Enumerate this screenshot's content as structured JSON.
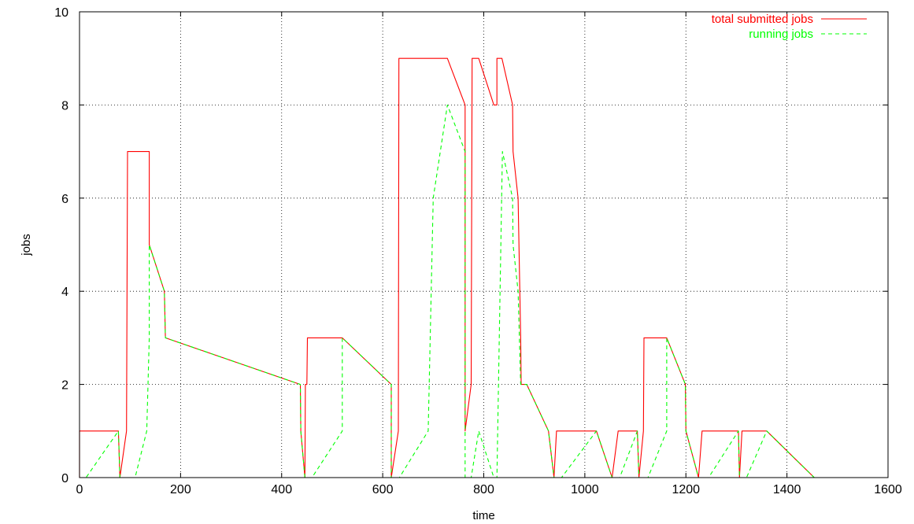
{
  "chart_data": {
    "type": "line",
    "title": "",
    "xlabel": "time",
    "ylabel": "jobs",
    "xlim": [
      0,
      1600
    ],
    "ylim": [
      0,
      10
    ],
    "xticks": [
      0,
      200,
      400,
      600,
      800,
      1000,
      1200,
      1400,
      1600
    ],
    "yticks": [
      0,
      2,
      4,
      6,
      8,
      10
    ],
    "grid": true,
    "legend_position": "top-right",
    "series": [
      {
        "name": "total submitted jobs",
        "color": "#ff0000",
        "dash": "solid",
        "points": [
          [
            0,
            0
          ],
          [
            0,
            1
          ],
          [
            77,
            1
          ],
          [
            80,
            0
          ],
          [
            93,
            1
          ],
          [
            95,
            7
          ],
          [
            138,
            7
          ],
          [
            138,
            5
          ],
          [
            168,
            4
          ],
          [
            170,
            3
          ],
          [
            437,
            2
          ],
          [
            438,
            1
          ],
          [
            446,
            0
          ],
          [
            447,
            2
          ],
          [
            450,
            2
          ],
          [
            451,
            3
          ],
          [
            520,
            3
          ],
          [
            617,
            2
          ],
          [
            617,
            0
          ],
          [
            631,
            1
          ],
          [
            632,
            9
          ],
          [
            728,
            9
          ],
          [
            763,
            8
          ],
          [
            763,
            1
          ],
          [
            775,
            2
          ],
          [
            777,
            9
          ],
          [
            790,
            9
          ],
          [
            820,
            8
          ],
          [
            826,
            8
          ],
          [
            826,
            9
          ],
          [
            836,
            9
          ],
          [
            857,
            8
          ],
          [
            858,
            7
          ],
          [
            868,
            6
          ],
          [
            873,
            3
          ],
          [
            874,
            2
          ],
          [
            885,
            2
          ],
          [
            928,
            1
          ],
          [
            939,
            0
          ],
          [
            944,
            1
          ],
          [
            1023,
            1
          ],
          [
            1054,
            0
          ],
          [
            1066,
            1
          ],
          [
            1104,
            1
          ],
          [
            1107,
            0
          ],
          [
            1116,
            1
          ],
          [
            1117,
            3
          ],
          [
            1162,
            3
          ],
          [
            1199,
            2
          ],
          [
            1200,
            1
          ],
          [
            1225,
            0
          ],
          [
            1232,
            1
          ],
          [
            1304,
            1
          ],
          [
            1306,
            0
          ],
          [
            1311,
            1
          ],
          [
            1360,
            1
          ],
          [
            1454,
            0
          ]
        ]
      },
      {
        "name": "running jobs",
        "color": "#00ff00",
        "dash": "dashed",
        "points": [
          [
            0,
            0
          ],
          [
            13,
            0
          ],
          [
            77,
            1
          ],
          [
            80,
            0
          ],
          [
            110,
            0
          ],
          [
            133,
            1
          ],
          [
            138,
            3
          ],
          [
            138,
            5
          ],
          [
            168,
            4
          ],
          [
            170,
            3
          ],
          [
            437,
            2
          ],
          [
            438,
            1
          ],
          [
            446,
            0
          ],
          [
            460,
            0
          ],
          [
            520,
            1
          ],
          [
            520,
            3
          ],
          [
            617,
            2
          ],
          [
            617,
            0
          ],
          [
            633,
            0
          ],
          [
            690,
            1
          ],
          [
            700,
            6
          ],
          [
            728,
            8
          ],
          [
            763,
            7
          ],
          [
            763,
            0
          ],
          [
            775,
            0
          ],
          [
            790,
            1
          ],
          [
            820,
            0
          ],
          [
            826,
            0
          ],
          [
            837,
            7
          ],
          [
            857,
            6
          ],
          [
            858,
            5
          ],
          [
            868,
            4
          ],
          [
            873,
            2
          ],
          [
            885,
            2
          ],
          [
            928,
            1
          ],
          [
            939,
            0
          ],
          [
            954,
            0
          ],
          [
            1023,
            1
          ],
          [
            1054,
            0
          ],
          [
            1069,
            0
          ],
          [
            1104,
            1
          ],
          [
            1107,
            0
          ],
          [
            1125,
            0
          ],
          [
            1162,
            1
          ],
          [
            1162,
            3
          ],
          [
            1199,
            2
          ],
          [
            1200,
            1
          ],
          [
            1225,
            0
          ],
          [
            1245,
            0
          ],
          [
            1304,
            1
          ],
          [
            1306,
            0
          ],
          [
            1320,
            0
          ],
          [
            1360,
            1
          ],
          [
            1454,
            0
          ]
        ]
      }
    ]
  }
}
